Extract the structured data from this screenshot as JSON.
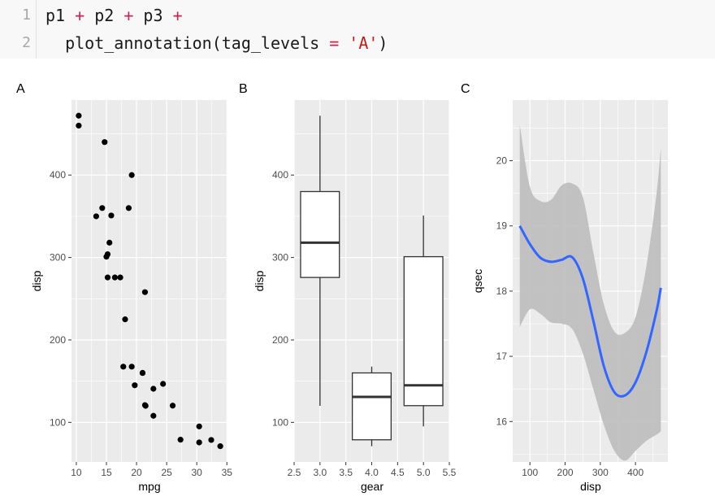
{
  "code": {
    "lines": [
      {
        "number": "1",
        "tokens": [
          {
            "text": "p1 ",
            "kind": "plain"
          },
          {
            "text": "+",
            "kind": "op"
          },
          {
            "text": " p2 ",
            "kind": "plain"
          },
          {
            "text": "+",
            "kind": "op"
          },
          {
            "text": " p3 ",
            "kind": "plain"
          },
          {
            "text": "+",
            "kind": "op"
          }
        ]
      },
      {
        "number": "2",
        "tokens": [
          {
            "text": "  plot_annotation(tag_levels ",
            "kind": "plain"
          },
          {
            "text": "=",
            "kind": "op"
          },
          {
            "text": " ",
            "kind": "plain"
          },
          {
            "text": "'A'",
            "kind": "str"
          },
          {
            "text": ")",
            "kind": "plain"
          }
        ]
      }
    ]
  },
  "colors": {
    "panel_bg": "#ebebeb",
    "grid": "#ffffff",
    "points": "#000000",
    "smooth_line": "#3366ff",
    "ribbon": "#bdbdbd",
    "op_token": "#c7254e",
    "string_token": "#c41a16"
  },
  "chart_data": [
    {
      "tag": "A",
      "type": "scatter",
      "xlabel": "mpg",
      "ylabel": "disp",
      "xlim": [
        9.2,
        35.1
      ],
      "ylim": [
        52,
        491
      ],
      "xticks": [
        10,
        15,
        20,
        25,
        30,
        35
      ],
      "yticks": [
        100,
        200,
        300,
        400
      ],
      "grid": true,
      "points": [
        [
          21.0,
          160
        ],
        [
          21.0,
          160
        ],
        [
          22.8,
          108
        ],
        [
          21.4,
          258
        ],
        [
          18.7,
          360
        ],
        [
          18.1,
          225
        ],
        [
          14.3,
          360
        ],
        [
          24.4,
          146.7
        ],
        [
          22.8,
          140.8
        ],
        [
          19.2,
          167.6
        ],
        [
          17.8,
          167.6
        ],
        [
          16.4,
          275.8
        ],
        [
          17.3,
          275.8
        ],
        [
          15.2,
          275.8
        ],
        [
          10.4,
          472
        ],
        [
          10.4,
          460
        ],
        [
          14.7,
          440
        ],
        [
          32.4,
          78.7
        ],
        [
          30.4,
          75.7
        ],
        [
          33.9,
          71.1
        ],
        [
          21.5,
          120.1
        ],
        [
          15.5,
          318
        ],
        [
          15.2,
          304
        ],
        [
          13.3,
          350
        ],
        [
          19.2,
          400
        ],
        [
          27.3,
          79
        ],
        [
          26.0,
          120.3
        ],
        [
          30.4,
          95.1
        ],
        [
          15.8,
          351
        ],
        [
          19.7,
          145
        ],
        [
          15.0,
          301
        ],
        [
          21.4,
          121
        ]
      ]
    },
    {
      "tag": "B",
      "type": "boxplot",
      "xlabel": "gear",
      "ylabel": "disp",
      "xlim": [
        2.5,
        5.5
      ],
      "ylim": [
        52,
        491
      ],
      "xticks": [
        2.5,
        3.0,
        3.5,
        4.0,
        4.5,
        5.0,
        5.5
      ],
      "xtick_labels": [
        "2.5",
        "3.0",
        "3.5",
        "4.0",
        "4.5",
        "5.0",
        "5.5"
      ],
      "yticks": [
        100,
        200,
        300,
        400
      ],
      "grid": true,
      "boxes": [
        {
          "x": 3,
          "min": 120.1,
          "q1": 275.8,
          "median": 318,
          "q3": 380,
          "max": 472
        },
        {
          "x": 4,
          "min": 71.1,
          "q1": 78.9,
          "median": 130.9,
          "q3": 160,
          "max": 167.6
        },
        {
          "x": 5,
          "min": 95.1,
          "q1": 120.3,
          "median": 145,
          "q3": 301,
          "max": 351
        }
      ]
    },
    {
      "tag": "C",
      "type": "line",
      "xlabel": "disp",
      "ylabel": "qsec",
      "xlim": [
        51,
        492
      ],
      "ylim": [
        15.38,
        20.93
      ],
      "xticks": [
        100,
        200,
        300,
        400
      ],
      "yticks": [
        16,
        17,
        18,
        19,
        20
      ],
      "grid": true,
      "smooth": {
        "x": [
          71.1,
          100,
          130,
          160,
          190,
          220,
          250,
          280,
          310,
          340,
          370,
          400,
          430,
          460,
          472
        ],
        "y": [
          19.0,
          18.72,
          18.51,
          18.45,
          18.48,
          18.52,
          18.2,
          17.55,
          16.85,
          16.45,
          16.4,
          16.6,
          17.05,
          17.7,
          18.05
        ],
        "lower": [
          17.45,
          17.72,
          17.65,
          17.52,
          17.5,
          17.42,
          17.05,
          16.5,
          15.95,
          15.55,
          15.4,
          15.55,
          15.7,
          15.8,
          15.85
        ],
        "upper": [
          20.55,
          19.6,
          19.38,
          19.4,
          19.62,
          19.65,
          19.45,
          18.6,
          17.8,
          17.38,
          17.36,
          17.6,
          18.35,
          19.5,
          20.2
        ]
      }
    }
  ]
}
